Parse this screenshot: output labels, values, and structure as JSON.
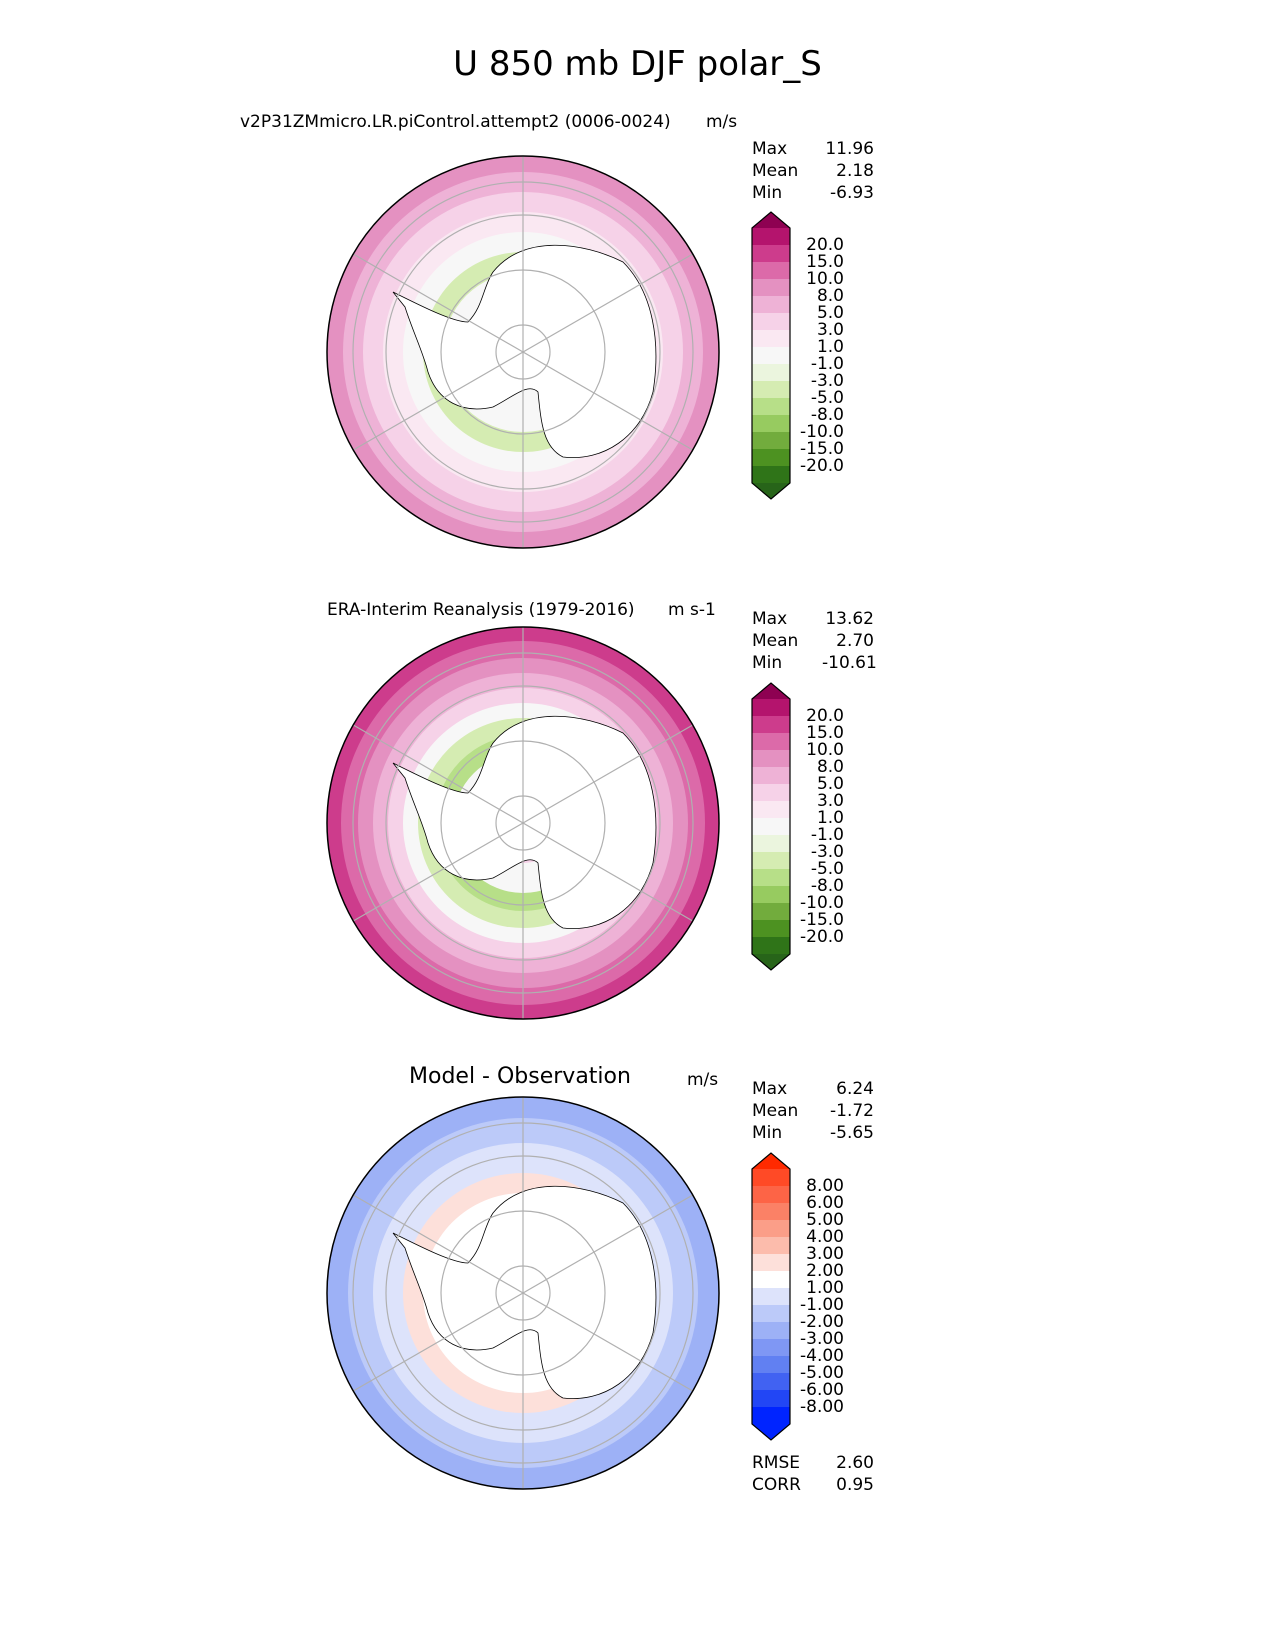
{
  "figure_title": "U 850 mb DJF polar_S",
  "panels": [
    {
      "title_left": "v2P31ZMmicro.LR.piControl.attempt2 (0006-0024)",
      "units": "m/s",
      "stats": {
        "max_label": "Max",
        "max": "11.96",
        "mean_label": "Mean",
        "mean": "2.18",
        "min_label": "Min",
        "min": "-6.93"
      },
      "colorbar": {
        "ticks": [
          "20.0",
          "15.0",
          "10.0",
          "8.0",
          "5.0",
          "3.0",
          "1.0",
          "-1.0",
          "-3.0",
          "-5.0",
          "-8.0",
          "-10.0",
          "-15.0",
          "-20.0"
        ],
        "colors": [
          "#8e0152",
          "#b4146d",
          "#cd3c8c",
          "#dc6aa9",
          "#e491c1",
          "#eeb2d6",
          "#f6d2e8",
          "#fae8f2",
          "#f7f7f7",
          "#ebf5de",
          "#d5ecb2",
          "#b7df88",
          "#97cb60",
          "#72ac3d",
          "#4d9221",
          "#2f7418",
          "#276419"
        ]
      }
    },
    {
      "title_left": "ERA-Interim Reanalysis (1979-2016)",
      "units": "m s-1",
      "stats": {
        "max_label": "Max",
        "max": "13.62",
        "mean_label": "Mean",
        "mean": "2.70",
        "min_label": "Min",
        "min": "-10.61"
      },
      "colorbar": {
        "ticks": [
          "20.0",
          "15.0",
          "10.0",
          "8.0",
          "5.0",
          "3.0",
          "1.0",
          "-1.0",
          "-3.0",
          "-5.0",
          "-8.0",
          "-10.0",
          "-15.0",
          "-20.0"
        ],
        "colors": [
          "#8e0152",
          "#b4146d",
          "#cd3c8c",
          "#dc6aa9",
          "#e491c1",
          "#eeb2d6",
          "#f6d2e8",
          "#fae8f2",
          "#f7f7f7",
          "#ebf5de",
          "#d5ecb2",
          "#b7df88",
          "#97cb60",
          "#72ac3d",
          "#4d9221",
          "#2f7418",
          "#276419"
        ]
      }
    },
    {
      "title_center": "Model - Observation",
      "units": "m/s",
      "stats": {
        "max_label": "Max",
        "max": "6.24",
        "mean_label": "Mean",
        "mean": "-1.72",
        "min_label": "Min",
        "min": "-5.65"
      },
      "extra_stats": {
        "rmse_label": "RMSE",
        "rmse": "2.60",
        "corr_label": "CORR",
        "corr": "0.95"
      },
      "colorbar": {
        "ticks": [
          "8.00",
          "6.00",
          "5.00",
          "4.00",
          "3.00",
          "2.00",
          "1.00",
          "-1.00",
          "-2.00",
          "-3.00",
          "-4.00",
          "-5.00",
          "-6.00",
          "-8.00"
        ],
        "colors": [
          "#ff2a00",
          "#ff4a26",
          "#fd6446",
          "#fb8166",
          "#fb9e88",
          "#fcbcac",
          "#fde0da",
          "#ffffff",
          "#dde3fb",
          "#bccaf9",
          "#9db1f6",
          "#7f97f4",
          "#6180f2",
          "#4162f2",
          "#2246f5",
          "#0024ff",
          "#0024ff"
        ]
      }
    }
  ]
}
